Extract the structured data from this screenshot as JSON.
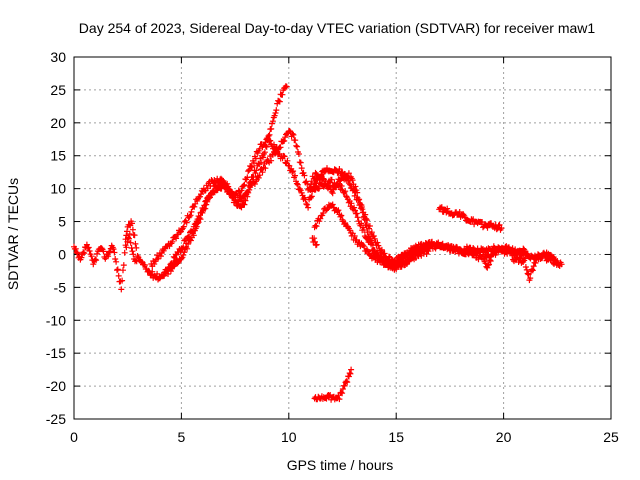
{
  "chart_data": {
    "type": "scatter",
    "title": "Day 254 of 2023, Sidereal Day-to-day VTEC variation (SDTVAR) for receiver maw1",
    "xlabel": "GPS time / hours",
    "ylabel": "SDTVAR / TECUs",
    "xlim": [
      0,
      25
    ],
    "ylim": [
      -25,
      30
    ],
    "xticks": [
      0,
      5,
      10,
      15,
      20,
      25
    ],
    "yticks": [
      -25,
      -20,
      -15,
      -10,
      -5,
      0,
      5,
      10,
      15,
      20,
      25,
      30
    ],
    "grid": true,
    "marker": "+",
    "series": [
      {
        "name": "SDTVAR",
        "color": "#ff0000",
        "tracks": [
          [
            [
              0.0,
              1.0
            ],
            [
              0.3,
              -1.0
            ],
            [
              0.6,
              1.5
            ],
            [
              0.9,
              -1.5
            ],
            [
              1.2,
              1.0
            ],
            [
              1.5,
              -0.5
            ],
            [
              1.8,
              1.5
            ],
            [
              2.0,
              -2.0
            ],
            [
              2.2,
              -5.0
            ],
            [
              2.4,
              1.0
            ],
            [
              2.6,
              3.0
            ],
            [
              2.8,
              -1.0
            ],
            [
              3.0,
              -0.5
            ],
            [
              3.3,
              -2.0
            ],
            [
              3.6,
              -3.0
            ],
            [
              4.0,
              -3.5
            ],
            [
              4.4,
              -2.0
            ],
            [
              4.8,
              -1.0
            ]
          ],
          [
            [
              2.4,
              2.0
            ],
            [
              2.5,
              4.0
            ],
            [
              2.7,
              5.0
            ],
            [
              2.9,
              1.0
            ]
          ],
          [
            [
              3.6,
              -1.5
            ],
            [
              4.0,
              0.0
            ],
            [
              4.4,
              1.5
            ],
            [
              4.8,
              3.0
            ],
            [
              5.2,
              5.0
            ],
            [
              5.6,
              7.5
            ],
            [
              6.0,
              9.5
            ],
            [
              6.4,
              11.0
            ],
            [
              6.8,
              11.5
            ],
            [
              7.2,
              10.0
            ],
            [
              7.6,
              8.0
            ],
            [
              8.0,
              9.0
            ],
            [
              8.4,
              12.5
            ],
            [
              8.8,
              15.0
            ],
            [
              9.1,
              18.0
            ],
            [
              9.3,
              21.0
            ],
            [
              9.5,
              23.0
            ],
            [
              9.7,
              24.5
            ],
            [
              9.9,
              25.5
            ]
          ],
          [
            [
              4.2,
              -3.0
            ],
            [
              4.6,
              -2.0
            ],
            [
              5.0,
              -0.5
            ],
            [
              5.4,
              2.0
            ],
            [
              5.8,
              5.0
            ],
            [
              6.2,
              8.0
            ],
            [
              6.6,
              10.5
            ],
            [
              7.0,
              11.0
            ],
            [
              7.4,
              9.0
            ],
            [
              7.8,
              9.5
            ],
            [
              8.2,
              13.0
            ],
            [
              8.6,
              16.0
            ],
            [
              9.0,
              17.5
            ],
            [
              9.4,
              16.0
            ],
            [
              9.7,
              17.0
            ],
            [
              10.0,
              18.5
            ],
            [
              10.3,
              17.5
            ],
            [
              10.6,
              13.0
            ],
            [
              10.9,
              10.0
            ],
            [
              11.2,
              12.0
            ],
            [
              11.6,
              11.5
            ],
            [
              12.0,
              9.5
            ],
            [
              12.4,
              11.5
            ],
            [
              12.8,
              12.0
            ],
            [
              13.1,
              10.0
            ],
            [
              13.4,
              7.0
            ],
            [
              13.7,
              3.0
            ],
            [
              14.0,
              0.5
            ],
            [
              14.4,
              -1.0
            ],
            [
              14.8,
              -1.5
            ],
            [
              15.2,
              -0.5
            ],
            [
              15.6,
              0.5
            ],
            [
              16.0,
              1.0
            ],
            [
              16.5,
              1.5
            ],
            [
              17.0,
              1.5
            ],
            [
              17.5,
              1.0
            ],
            [
              18.0,
              0.5
            ],
            [
              18.5,
              1.0
            ],
            [
              19.0,
              0.5
            ],
            [
              19.5,
              1.0
            ],
            [
              20.0,
              0.5
            ],
            [
              20.5,
              0.5
            ],
            [
              21.0,
              0.5
            ]
          ],
          [
            [
              4.6,
              -1.0
            ],
            [
              5.0,
              1.0
            ],
            [
              5.4,
              3.0
            ],
            [
              5.8,
              5.5
            ],
            [
              6.2,
              8.5
            ],
            [
              6.6,
              10.0
            ],
            [
              7.0,
              10.5
            ],
            [
              7.4,
              8.5
            ],
            [
              7.8,
              7.0
            ],
            [
              8.2,
              10.0
            ],
            [
              8.6,
              12.0
            ],
            [
              9.0,
              14.0
            ],
            [
              9.4,
              15.5
            ],
            [
              9.8,
              14.5
            ],
            [
              10.2,
              12.5
            ],
            [
              10.6,
              9.0
            ],
            [
              10.9,
              7.5
            ],
            [
              11.2,
              10.5
            ],
            [
              11.6,
              12.5
            ],
            [
              12.0,
              13.0
            ],
            [
              12.4,
              12.5
            ],
            [
              12.8,
              11.0
            ],
            [
              13.2,
              8.5
            ],
            [
              13.6,
              5.5
            ],
            [
              14.0,
              2.0
            ],
            [
              14.5,
              -0.5
            ],
            [
              15.0,
              -1.0
            ],
            [
              15.5,
              0.0
            ],
            [
              16.0,
              1.0
            ],
            [
              16.5,
              1.0
            ],
            [
              17.0,
              1.5
            ],
            [
              17.5,
              1.0
            ],
            [
              18.0,
              0.5
            ],
            [
              18.5,
              0.0
            ],
            [
              19.0,
              -0.5
            ],
            [
              19.5,
              0.0
            ],
            [
              20.0,
              1.0
            ],
            [
              20.5,
              0.5
            ],
            [
              21.0,
              0.0
            ],
            [
              21.5,
              -0.5
            ],
            [
              22.0,
              0.0
            ],
            [
              22.5,
              -1.0
            ]
          ],
          [
            [
              11.0,
              9.5
            ],
            [
              11.5,
              10.5
            ],
            [
              12.0,
              11.0
            ],
            [
              12.5,
              10.0
            ],
            [
              13.0,
              7.0
            ],
            [
              13.5,
              3.5
            ],
            [
              14.0,
              0.0
            ],
            [
              14.5,
              -1.5
            ],
            [
              15.0,
              -2.0
            ],
            [
              15.5,
              -1.0
            ],
            [
              16.0,
              0.0
            ],
            [
              16.5,
              0.5
            ]
          ],
          [
            [
              11.2,
              4.0
            ],
            [
              11.6,
              6.5
            ],
            [
              12.0,
              7.5
            ],
            [
              12.4,
              6.0
            ],
            [
              12.8,
              3.5
            ],
            [
              13.2,
              2.0
            ],
            [
              13.6,
              0.5
            ],
            [
              14.0,
              -0.5
            ],
            [
              14.5,
              -1.5
            ],
            [
              15.0,
              -2.0
            ],
            [
              15.5,
              -1.0
            ],
            [
              16.0,
              0.5
            ],
            [
              16.5,
              1.5
            ]
          ],
          [
            [
              17.0,
              7.0
            ],
            [
              17.5,
              6.5
            ],
            [
              18.0,
              6.0
            ],
            [
              18.5,
              5.0
            ],
            [
              19.0,
              4.5
            ],
            [
              19.5,
              4.5
            ],
            [
              19.9,
              4.0
            ]
          ],
          [
            [
              11.1,
              2.5
            ],
            [
              11.3,
              1.5
            ]
          ],
          [
            [
              11.2,
              -21.5
            ],
            [
              11.5,
              -21.8
            ],
            [
              11.8,
              -21.5
            ],
            [
              12.1,
              -22.0
            ],
            [
              12.4,
              -21.5
            ],
            [
              12.6,
              -20.0
            ],
            [
              12.8,
              -18.5
            ],
            [
              12.9,
              -17.5
            ]
          ],
          [
            [
              19.0,
              1.0
            ],
            [
              19.2,
              -2.0
            ],
            [
              19.4,
              -1.0
            ]
          ],
          [
            [
              20.4,
              -0.5
            ],
            [
              21.0,
              -1.0
            ],
            [
              21.2,
              -3.5
            ],
            [
              21.4,
              -2.0
            ],
            [
              21.6,
              0.0
            ],
            [
              22.0,
              -0.5
            ],
            [
              22.3,
              -1.0
            ],
            [
              22.7,
              -1.5
            ]
          ]
        ]
      }
    ]
  }
}
